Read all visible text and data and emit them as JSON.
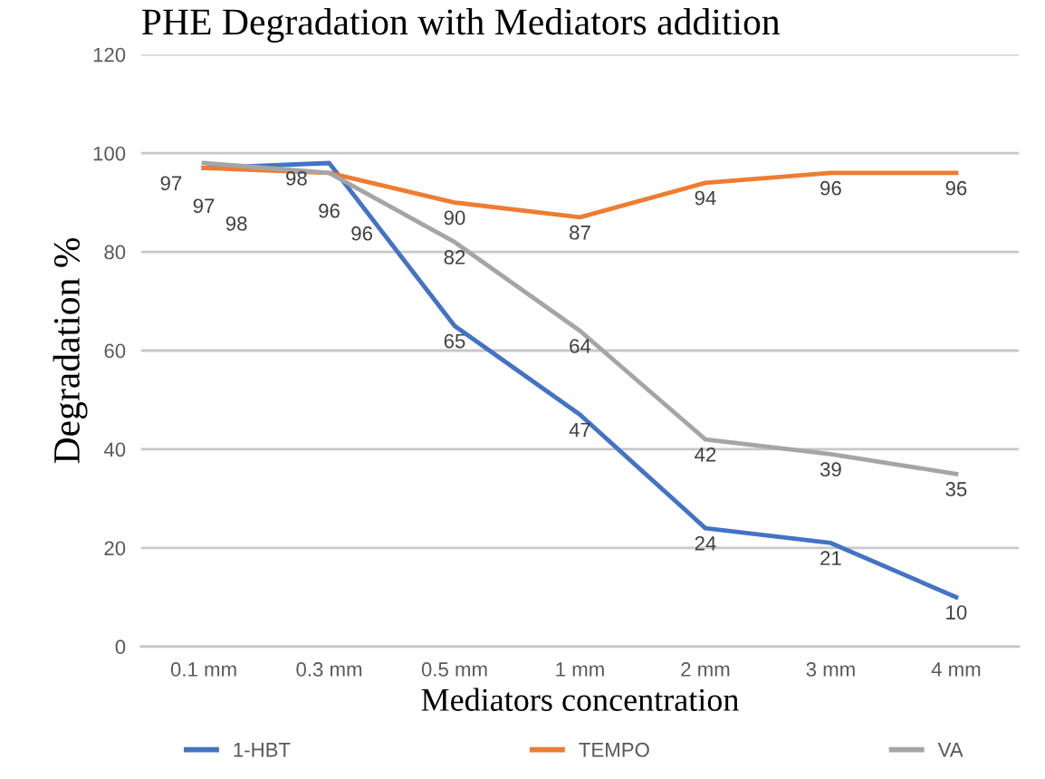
{
  "chart_data": {
    "type": "line",
    "title": "PHE Degradation with Mediators addition",
    "xlabel": "Mediators concentration",
    "ylabel": "Degradation %",
    "categories": [
      "0.1 mm",
      "0.3 mm",
      "0.5 mm",
      "1 mm",
      "2 mm",
      "3 mm",
      "4 mm"
    ],
    "series": [
      {
        "name": "1-HBT",
        "color": "#4472c4",
        "values": [
          97,
          98,
          65,
          47,
          24,
          21,
          10
        ]
      },
      {
        "name": "TEMPO",
        "color": "#ed7d31",
        "values": [
          97,
          96,
          90,
          87,
          94,
          96,
          96
        ]
      },
      {
        "name": "VA",
        "color": "#a5a5a5",
        "values": [
          98,
          96,
          82,
          64,
          42,
          39,
          35
        ]
      }
    ],
    "ylim": [
      0,
      120
    ],
    "yticks": [
      0,
      20,
      40,
      60,
      80,
      100,
      120
    ],
    "grid": "y",
    "legend": "bottom",
    "data_labels": true,
    "marker": "none",
    "line_style": "solid"
  }
}
